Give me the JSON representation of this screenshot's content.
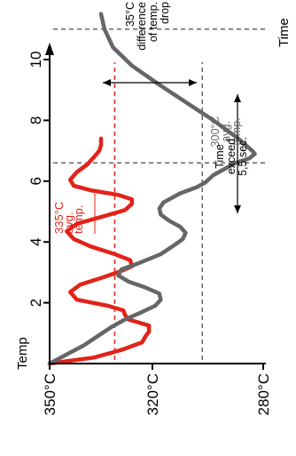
{
  "chart_data": {
    "type": "line",
    "orientation": "rotated-90-ccw",
    "xlabel": "Time",
    "ylabel": "Temp",
    "x_ticks": [
      2,
      4,
      6,
      8,
      10
    ],
    "xlim": [
      0,
      11.5
    ],
    "y_ticks": [
      {
        "value": 350,
        "label": "350°C"
      },
      {
        "value": 320,
        "label": "320°C"
      },
      {
        "value": 280,
        "label": "280°C"
      }
    ],
    "ylim": [
      280,
      350
    ],
    "series": [
      {
        "color": "#e2231a",
        "values": [
          [
            0.0,
            350
          ],
          [
            0.2,
            337
          ],
          [
            0.45,
            329
          ],
          [
            0.7,
            323
          ],
          [
            0.9,
            322
          ],
          [
            1.05,
            321
          ],
          [
            1.25,
            321
          ],
          [
            1.45,
            327
          ],
          [
            1.6,
            328
          ],
          [
            1.75,
            328.5
          ],
          [
            1.9,
            333
          ],
          [
            2.1,
            342
          ],
          [
            2.35,
            344
          ],
          [
            2.6,
            341
          ],
          [
            2.85,
            334
          ],
          [
            3.05,
            329
          ],
          [
            3.2,
            326
          ],
          [
            3.4,
            326.5
          ],
          [
            3.6,
            331
          ],
          [
            3.85,
            338
          ],
          [
            4.1,
            343
          ],
          [
            4.35,
            345
          ],
          [
            4.6,
            342
          ],
          [
            4.85,
            334
          ],
          [
            5.05,
            328
          ],
          [
            5.25,
            326
          ],
          [
            5.4,
            326
          ],
          [
            5.55,
            330
          ],
          [
            5.7,
            338
          ],
          [
            5.85,
            343
          ],
          [
            6.05,
            344
          ],
          [
            6.3,
            342
          ],
          [
            6.55,
            339
          ],
          [
            6.8,
            337
          ],
          [
            7.0,
            335.5
          ],
          [
            7.2,
            335
          ],
          [
            7.4,
            335
          ]
        ]
      },
      {
        "color": "#666666",
        "values": [
          [
            0.0,
            350
          ],
          [
            0.3,
            345
          ],
          [
            0.6,
            340
          ],
          [
            0.9,
            336
          ],
          [
            1.2,
            332
          ],
          [
            1.45,
            328
          ],
          [
            1.7,
            323
          ],
          [
            1.9,
            319
          ],
          [
            2.1,
            317
          ],
          [
            2.3,
            317.5
          ],
          [
            2.5,
            322
          ],
          [
            2.7,
            327
          ],
          [
            2.9,
            330
          ],
          [
            3.1,
            329
          ],
          [
            3.3,
            324
          ],
          [
            3.6,
            317
          ],
          [
            3.9,
            312
          ],
          [
            4.1,
            309
          ],
          [
            4.3,
            308
          ],
          [
            4.5,
            310
          ],
          [
            4.7,
            314
          ],
          [
            4.9,
            317
          ],
          [
            5.1,
            317.5
          ],
          [
            5.3,
            316
          ],
          [
            5.6,
            310
          ],
          [
            5.8,
            304
          ],
          [
            5.95,
            301
          ],
          [
            6.2,
            298
          ],
          [
            6.4,
            294
          ],
          [
            6.6,
            290
          ],
          [
            6.75,
            285
          ],
          [
            6.9,
            283
          ],
          [
            7.0,
            284
          ],
          [
            7.4,
            289
          ],
          [
            8.0,
            298
          ],
          [
            8.6,
            308
          ],
          [
            9.2,
            318
          ],
          [
            9.8,
            326
          ],
          [
            10.4,
            331.5
          ],
          [
            11.0,
            334
          ],
          [
            11.5,
            335
          ]
        ]
      }
    ],
    "reference_lines": [
      {
        "axis": "temp",
        "value": 331,
        "color": "#e2231a",
        "style": "dashed"
      },
      {
        "axis": "temp",
        "value": 302,
        "color": "#666666",
        "style": "dashed"
      },
      {
        "axis": "time",
        "value": 6.6,
        "color": "#666666",
        "style": "dashed"
      },
      {
        "axis": "time",
        "value": 11.0,
        "color": "#666666",
        "style": "dashed"
      }
    ],
    "annotations": [
      {
        "id": "red-avg",
        "lines": [
          "335°C",
          "avg.",
          "temp."
        ],
        "color": "#e2231a"
      },
      {
        "id": "gray-avg",
        "lines": [
          "300°C",
          "avg.",
          "temp."
        ],
        "color": "#666666"
      },
      {
        "id": "diff",
        "lines": [
          "35°C",
          "difference",
          "of temp.",
          "drop"
        ],
        "color": "#000000"
      },
      {
        "id": "exceed",
        "lines": [
          "Time",
          "exceed",
          "5,5 sec."
        ],
        "color": "#000000"
      }
    ]
  }
}
